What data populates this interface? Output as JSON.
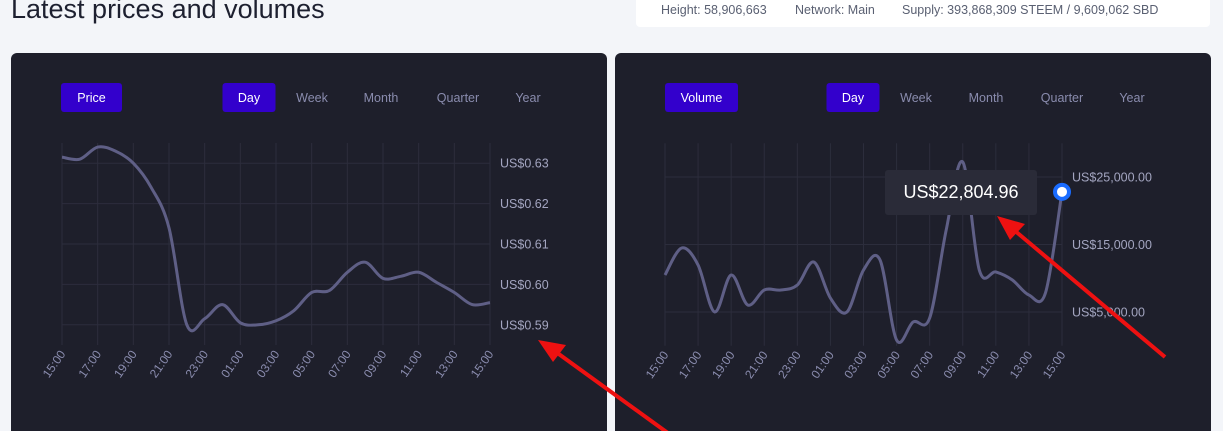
{
  "header": {
    "title": "Latest prices and volumes",
    "stats": [
      "Height: 58,906,663",
      "Network: Main",
      "Supply: 393,868,309 STEEM / 9,609,062 SBD"
    ]
  },
  "panels": [
    {
      "metric": "Price",
      "periods": [
        "Day",
        "Week",
        "Month",
        "Quarter",
        "Year"
      ],
      "active_period": 0
    },
    {
      "metric": "Volume",
      "periods": [
        "Day",
        "Week",
        "Month",
        "Quarter",
        "Year"
      ],
      "active_period": 0
    }
  ],
  "chart_data": [
    {
      "type": "line",
      "color": "#5f5f86",
      "grid": true,
      "categories": [
        "15:00",
        null,
        "17:00",
        null,
        "19:00",
        null,
        "21:00",
        null,
        "23:00",
        null,
        "01:00",
        null,
        "03:00",
        null,
        "05:00",
        null,
        "07:00",
        null,
        "09:00",
        null,
        "11:00",
        null,
        "13:00",
        null,
        "15:00"
      ],
      "values": [
        0.6315,
        0.631,
        0.634,
        0.633,
        0.63,
        0.624,
        0.614,
        0.59,
        0.5915,
        0.595,
        0.5905,
        0.59,
        0.591,
        0.5935,
        0.598,
        0.5985,
        0.603,
        0.6055,
        0.6015,
        0.602,
        0.603,
        0.6005,
        0.598,
        0.595,
        0.5955
      ],
      "ylim": [
        0.585,
        0.635
      ],
      "yticks": [
        {
          "value": 0.59,
          "label": "US$0.59"
        },
        {
          "value": 0.6,
          "label": "US$0.60"
        },
        {
          "value": 0.61,
          "label": "US$0.61"
        },
        {
          "value": 0.62,
          "label": "US$0.62"
        },
        {
          "value": 0.63,
          "label": "US$0.63"
        }
      ]
    },
    {
      "type": "line",
      "color": "#5f5f86",
      "grid": true,
      "categories": [
        "15:00",
        null,
        "17:00",
        null,
        "19:00",
        null,
        "21:00",
        null,
        "23:00",
        null,
        "01:00",
        null,
        "03:00",
        null,
        "05:00",
        null,
        "07:00",
        null,
        "09:00",
        null,
        "11:00",
        null,
        "13:00",
        null,
        "15:00"
      ],
      "values": [
        10480,
        14480,
        11960,
        5000,
        10480,
        6040,
        8260,
        8260,
        9000,
        12400,
        7070,
        5000,
        11220,
        12700,
        850,
        3520,
        4110,
        17150,
        27220,
        11220,
        10930,
        9740,
        7520,
        7820,
        22804.96
      ],
      "value_labels": [
        null,
        null,
        null,
        null,
        null,
        null,
        null,
        null,
        null,
        null,
        null,
        null,
        null,
        null,
        null,
        null,
        null,
        null,
        null,
        null,
        null,
        null,
        null,
        null,
        "US$22,804.96"
      ],
      "ylim": [
        0,
        30000
      ],
      "yticks": [
        {
          "value": 5000,
          "label": "US$5,000.00"
        },
        {
          "value": 15000,
          "label": "US$15,000.00"
        },
        {
          "value": 25000,
          "label": "US$25,000.00"
        }
      ]
    }
  ]
}
